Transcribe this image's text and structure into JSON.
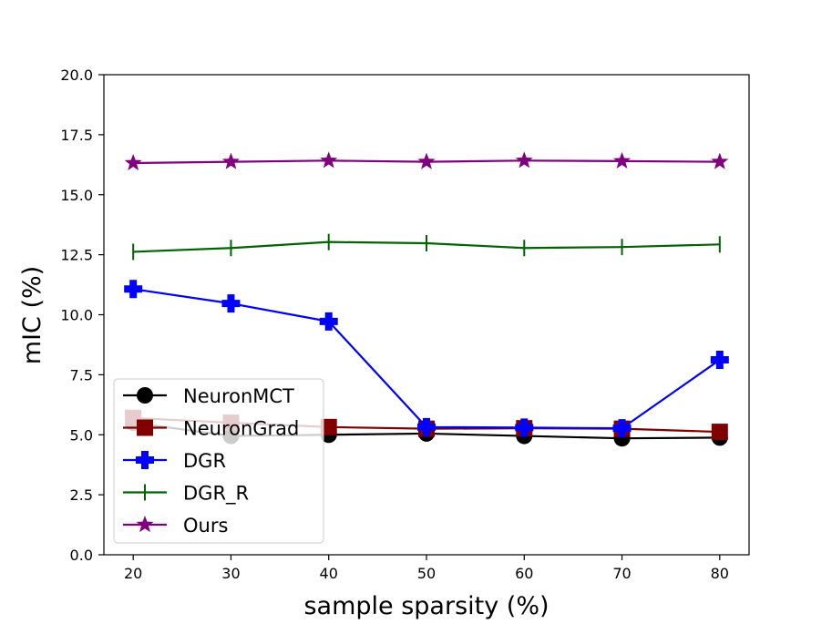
{
  "chart_data": {
    "type": "line",
    "title": "",
    "xlabel": "sample sparsity (%)",
    "ylabel": "mIC (%)",
    "x": [
      20,
      30,
      40,
      50,
      60,
      70,
      80
    ],
    "xticks": [
      "20",
      "30",
      "40",
      "50",
      "60",
      "70",
      "80"
    ],
    "yticks": [
      "0.0",
      "2.5",
      "5.0",
      "7.5",
      "10.0",
      "12.5",
      "15.0",
      "17.5",
      "20.0"
    ],
    "xlim": [
      17,
      83
    ],
    "ylim": [
      0,
      20
    ],
    "grid": false,
    "legend_position": "lower-left",
    "series": [
      {
        "name": "NeuronMCT",
        "color": "#000000",
        "marker": "circle",
        "values": [
          5.5,
          4.95,
          5.0,
          5.05,
          4.95,
          4.85,
          4.88
        ]
      },
      {
        "name": "NeuronGrad",
        "color": "#800000",
        "marker": "square",
        "values": [
          5.7,
          5.5,
          5.32,
          5.25,
          5.27,
          5.25,
          5.12
        ]
      },
      {
        "name": "DGR",
        "color": "#0000ff",
        "marker": "plus",
        "values": [
          11.07,
          10.47,
          9.72,
          5.32,
          5.3,
          5.27,
          8.12
        ]
      },
      {
        "name": "DGR_R",
        "color": "#006400",
        "marker": "vline",
        "values": [
          12.62,
          12.78,
          13.03,
          12.98,
          12.78,
          12.82,
          12.93
        ]
      },
      {
        "name": "Ours",
        "color": "#800080",
        "marker": "star",
        "values": [
          16.32,
          16.37,
          16.42,
          16.37,
          16.42,
          16.4,
          16.37
        ]
      }
    ]
  }
}
